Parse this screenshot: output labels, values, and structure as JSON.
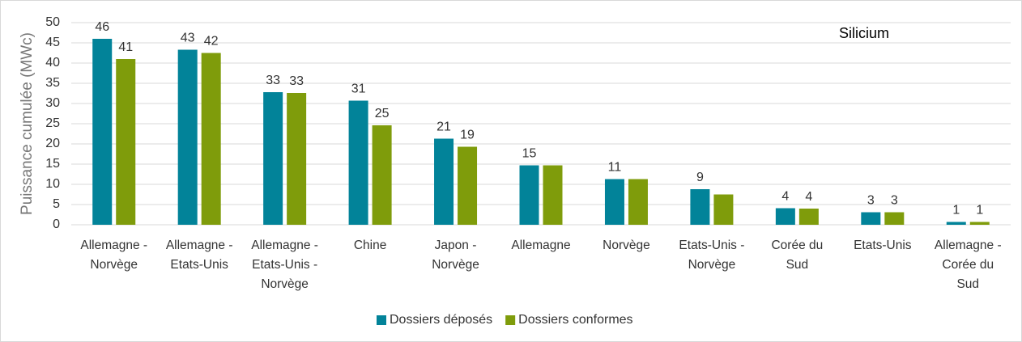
{
  "chart_data": {
    "type": "bar",
    "title": "Silicium",
    "y_label": "Puissance cumulée (MWc)",
    "categories": [
      "Allemagne -\nNorvège",
      "Allemagne -\nEtats-Unis",
      "Allemagne -\nEtats-Unis -\nNorvège",
      "Chine",
      "Japon -\nNorvège",
      "Allemagne",
      "Norvège",
      "Etats-Unis -\nNorvège",
      "Corée du\nSud",
      "Etats-Unis",
      "Allemagne -\nCorée du\nSud"
    ],
    "series": [
      {
        "name": "Dossiers déposés",
        "color": "#028399",
        "values": [
          46.0,
          43.3,
          32.8,
          30.7,
          21.3,
          14.7,
          11.3,
          8.8,
          4.1,
          3.1,
          0.7
        ],
        "value_labels": [
          "46",
          "43",
          "33",
          "31",
          "21",
          "15",
          "11",
          "9",
          "4",
          "3",
          "1"
        ]
      },
      {
        "name": "Dossiers conformes",
        "color": "#7f9c0b",
        "values": [
          41.0,
          42.5,
          32.6,
          24.6,
          19.3,
          14.7,
          11.3,
          7.5,
          4.0,
          3.1,
          0.7
        ],
        "value_labels": [
          "41",
          "42",
          "33",
          "25",
          "19",
          null,
          null,
          null,
          "4",
          "3",
          "1"
        ]
      }
    ],
    "ylim": [
      0,
      50
    ],
    "yticks": [
      0,
      5,
      10,
      15,
      20,
      25,
      30,
      35,
      40,
      45,
      50
    ],
    "grid": true,
    "legend": "bottom"
  }
}
